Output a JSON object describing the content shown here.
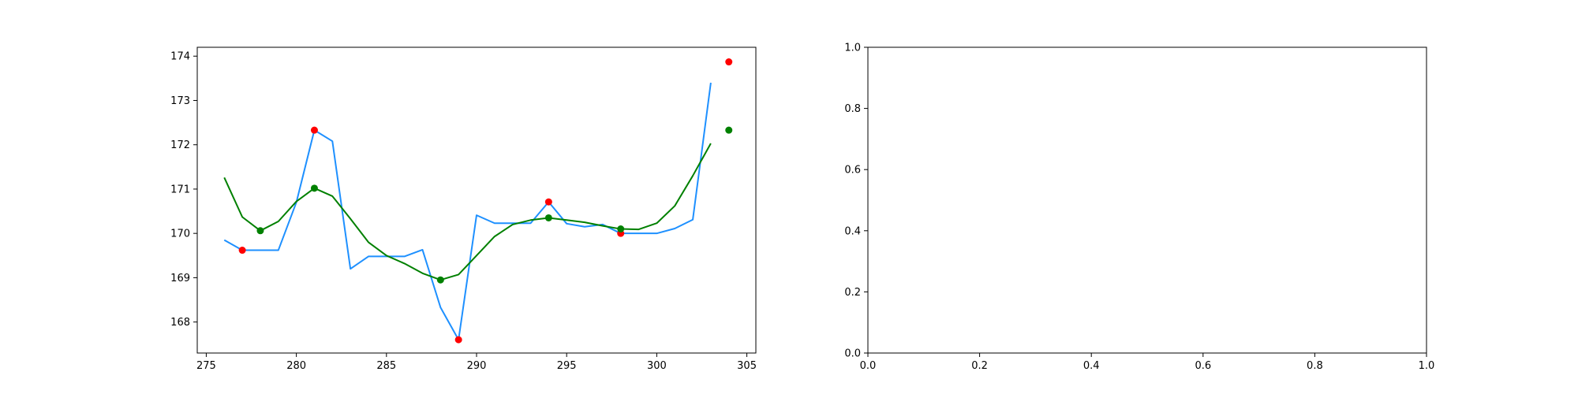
{
  "chart_data": [
    {
      "type": "line",
      "title": "",
      "xlabel": "",
      "ylabel": "",
      "xlim": [
        274.5,
        305.5
      ],
      "ylim": [
        167.3,
        174.2
      ],
      "xticks": [
        275,
        280,
        285,
        290,
        295,
        300,
        305
      ],
      "yticks": [
        168,
        169,
        170,
        171,
        172,
        173,
        174
      ],
      "grid": false,
      "legend": "none",
      "series": [
        {
          "kind": "line",
          "color": "#1e90ff",
          "x": [
            276,
            277,
            278,
            279,
            280,
            281,
            282,
            283,
            284,
            285,
            286,
            287,
            288,
            289,
            290,
            291,
            292,
            293,
            294,
            295,
            296,
            297,
            298,
            299,
            300,
            301,
            302,
            303
          ],
          "y": [
            169.85,
            169.62,
            169.62,
            169.62,
            170.7,
            172.33,
            172.08,
            169.2,
            169.48,
            169.48,
            169.48,
            169.63,
            168.33,
            167.6,
            170.41,
            170.23,
            170.23,
            170.23,
            170.71,
            170.22,
            170.15,
            170.2,
            170.0,
            170.0,
            170.0,
            170.11,
            170.31,
            173.4
          ]
        },
        {
          "kind": "line",
          "color": "#008000",
          "x": [
            276,
            277,
            278,
            279,
            280,
            281,
            282,
            283,
            284,
            285,
            286,
            287,
            288,
            289,
            290,
            291,
            292,
            293,
            294,
            295,
            296,
            297,
            298,
            299,
            300,
            301,
            302,
            303
          ],
          "y": [
            171.26,
            170.37,
            170.06,
            170.27,
            170.72,
            171.02,
            170.84,
            170.33,
            169.8,
            169.5,
            169.32,
            169.1,
            168.95,
            169.07,
            169.5,
            169.93,
            170.2,
            170.3,
            170.35,
            170.3,
            170.25,
            170.17,
            170.1,
            170.09,
            170.23,
            170.62,
            171.3,
            172.03
          ]
        },
        {
          "kind": "scatter",
          "color": "#ff0000",
          "x": [
            277,
            281,
            289,
            294,
            298,
            304
          ],
          "y": [
            169.62,
            172.33,
            167.6,
            170.71,
            170.0,
            173.87
          ]
        },
        {
          "kind": "scatter",
          "color": "#008000",
          "x": [
            278,
            281,
            288,
            294,
            298,
            304
          ],
          "y": [
            170.06,
            171.02,
            168.95,
            170.35,
            170.1,
            172.33
          ]
        }
      ]
    },
    {
      "type": "line",
      "title": "",
      "xlabel": "",
      "ylabel": "",
      "xlim": [
        0,
        1
      ],
      "ylim": [
        0,
        1
      ],
      "xticks": [
        "0.0",
        "0.2",
        "0.4",
        "0.6",
        "0.8",
        "1.0"
      ],
      "yticks": [
        "0.0",
        "0.2",
        "0.4",
        "0.6",
        "0.8",
        "1.0"
      ],
      "grid": false,
      "legend": "none",
      "series": []
    }
  ]
}
